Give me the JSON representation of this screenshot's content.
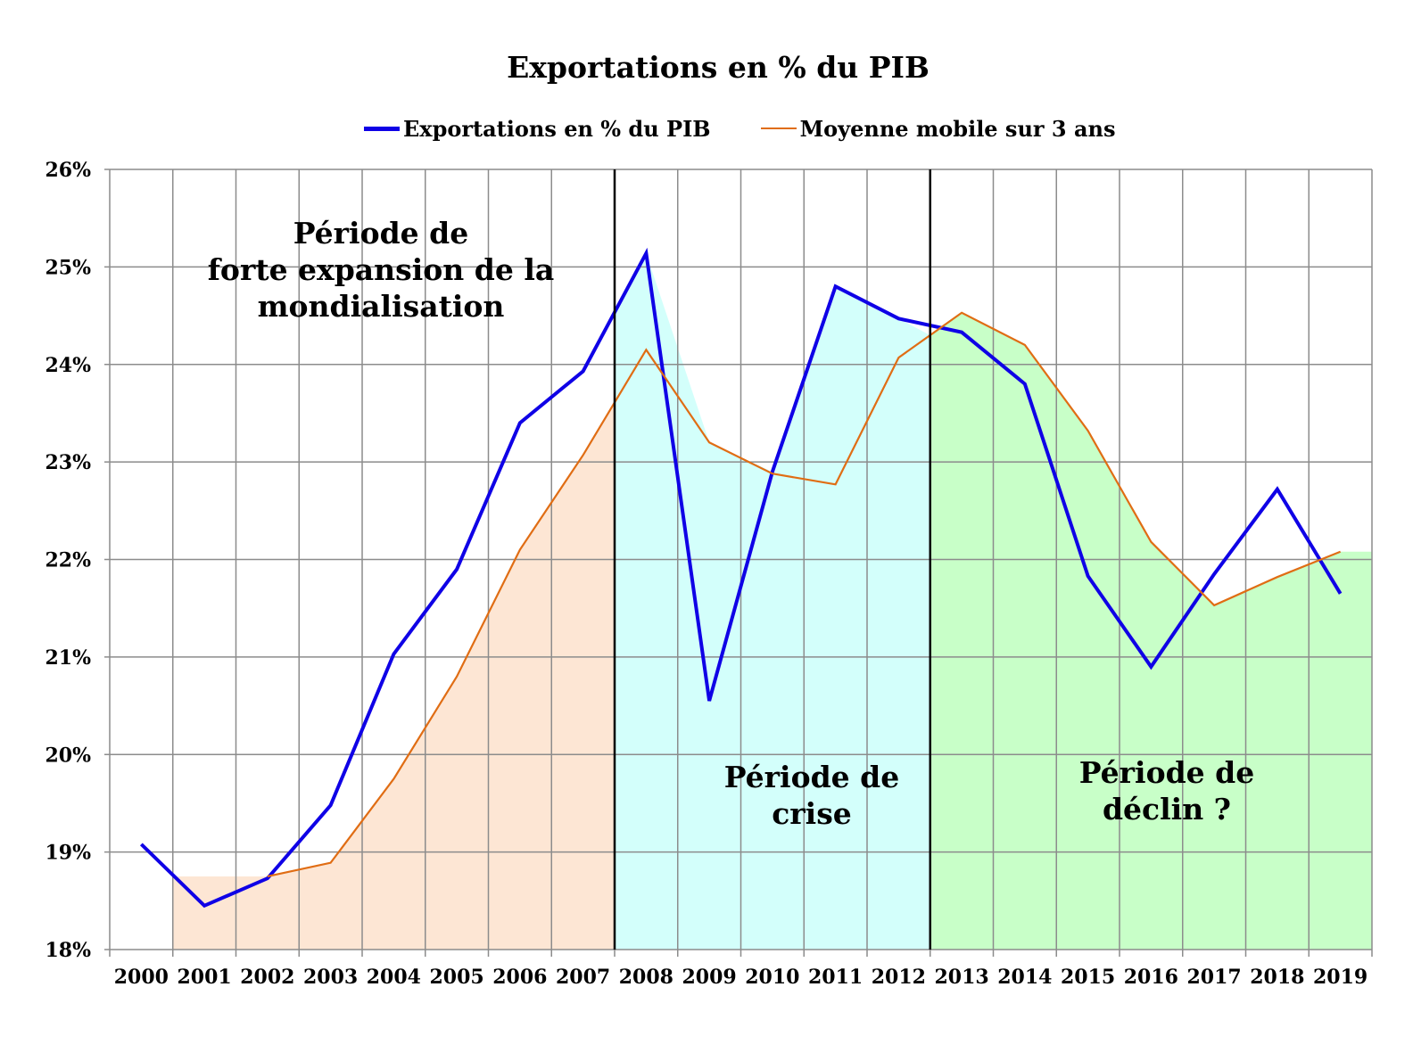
{
  "chart_data": {
    "type": "line",
    "title": "Exportations en % du PIB",
    "xlabel": "",
    "ylabel": "",
    "categories": [
      "2000",
      "2001",
      "2002",
      "2003",
      "2004",
      "2005",
      "2006",
      "2007",
      "2008",
      "2009",
      "2010",
      "2011",
      "2012",
      "2013",
      "2014",
      "2015",
      "2016",
      "2017",
      "2018",
      "2019"
    ],
    "ylim": [
      18,
      26
    ],
    "ytick_labels": [
      "18%",
      "19%",
      "20%",
      "21%",
      "22%",
      "23%",
      "24%",
      "25%",
      "26%"
    ],
    "grid": true,
    "legend_position": "top",
    "series": [
      {
        "name": "Exportations en % du PIB",
        "color": "#0f00e6",
        "values": [
          19.08,
          18.45,
          18.73,
          19.48,
          21.03,
          21.9,
          23.4,
          23.93,
          25.14,
          20.55,
          22.9,
          24.8,
          24.47,
          24.33,
          23.8,
          21.83,
          20.9,
          21.85,
          22.72,
          21.65
        ]
      },
      {
        "name": "Moyenne mobile sur 3 ans",
        "color": "#e06d14",
        "values": [
          null,
          null,
          18.75,
          18.89,
          19.75,
          20.8,
          22.1,
          23.07,
          24.15,
          23.2,
          22.88,
          22.77,
          24.07,
          24.53,
          24.2,
          23.32,
          22.18,
          21.53,
          21.82,
          22.08
        ]
      }
    ],
    "shaded_regions": [
      {
        "color": "#fde6d4",
        "label_lines": [
          "Période de",
          "forte expansion de la",
          "mondialisation"
        ]
      },
      {
        "color": "#d3fffb",
        "label_lines": [
          "Période de",
          "crise"
        ]
      },
      {
        "color": "#c8ffc8",
        "label_lines": [
          "Période de",
          "déclin ?"
        ]
      }
    ],
    "vertical_lines_at": [
      "2008",
      "2013"
    ]
  }
}
